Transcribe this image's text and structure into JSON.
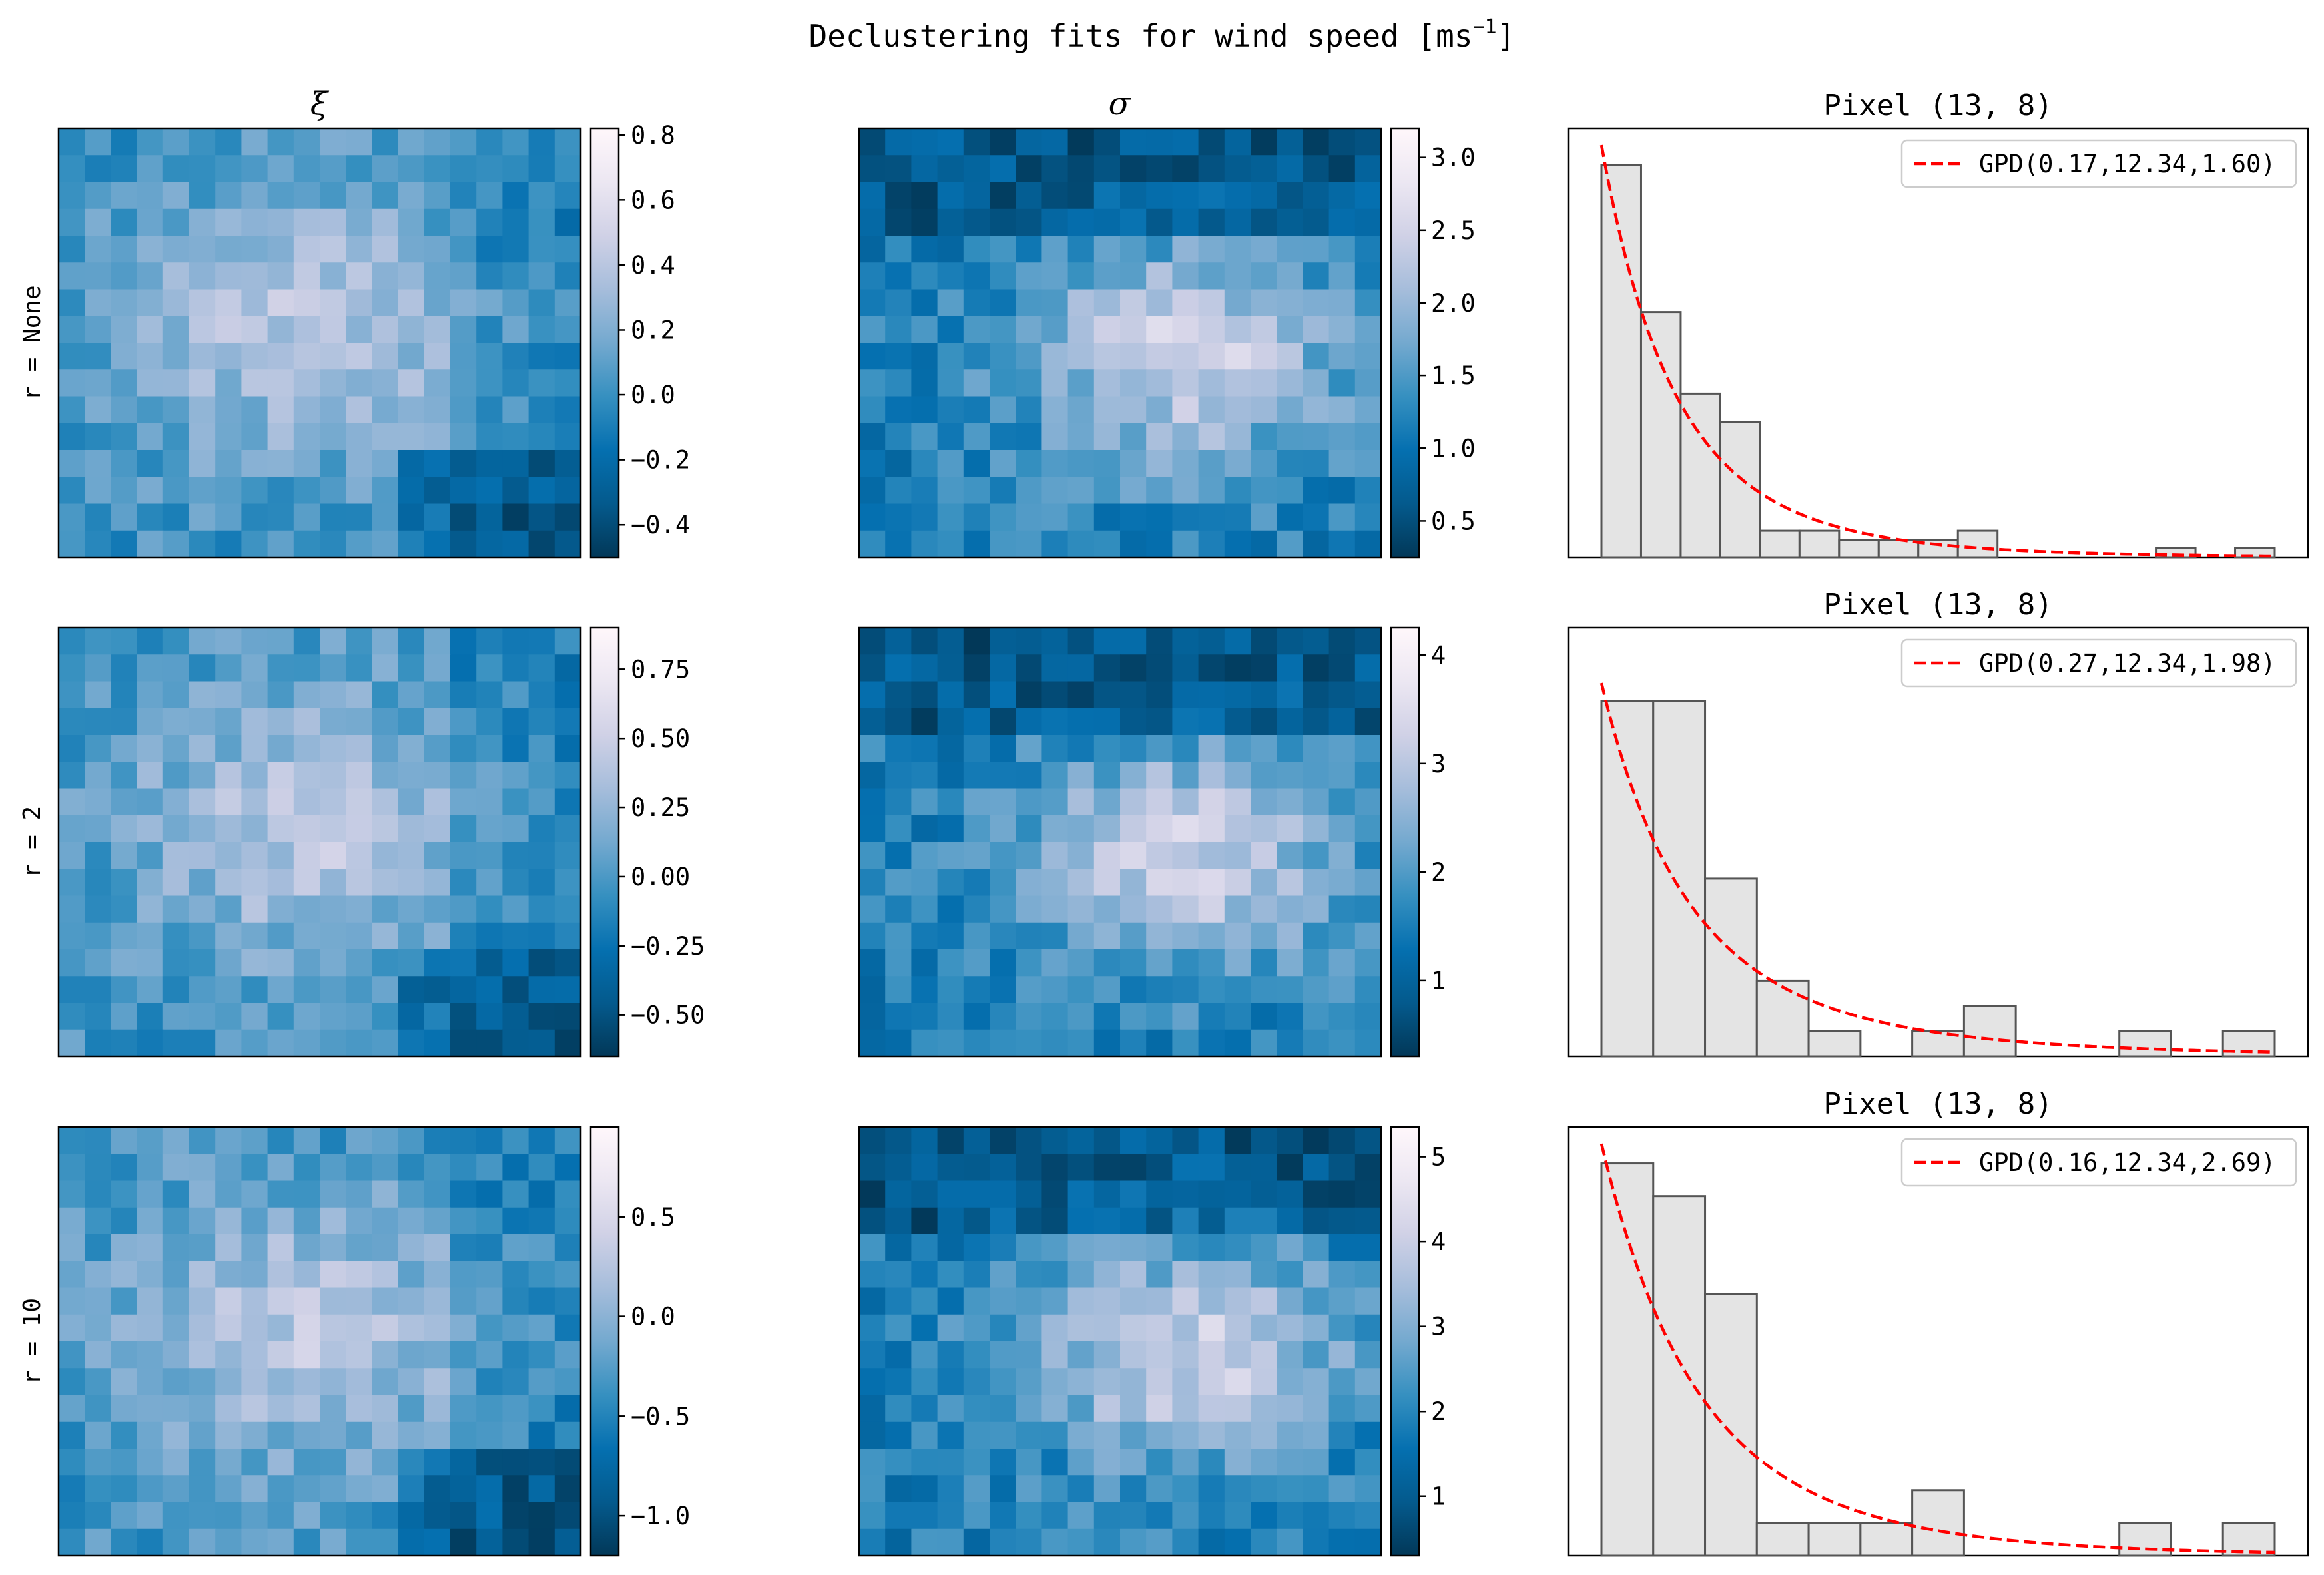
{
  "figure": {
    "title_main": "Declustering fits for wind speed [ms",
    "title_sup": "−1",
    "title_end": "]",
    "colors": {
      "cmap": [
        "#023858",
        "#045a8d",
        "#0570b0",
        "#3690c0",
        "#74a9cf",
        "#a6bddb",
        "#d0d1e6",
        "#ece7f2",
        "#fff7fb"
      ],
      "hist_fill": "#e4e4e4",
      "hist_edge": "#555555",
      "fit_line": "#ff0000"
    }
  },
  "columns": {
    "xi_title": "ξ",
    "sigma_title": "σ"
  },
  "rows": [
    {
      "label": "r = None",
      "xi_colorbar": {
        "ticks": [
          "0.8",
          "0.6",
          "0.4",
          "0.2",
          "0.0",
          "−0.2",
          "−0.4"
        ],
        "tick_values": [
          0.8,
          0.6,
          0.4,
          0.2,
          0.0,
          -0.2,
          -0.4
        ],
        "range": [
          -0.5,
          0.82
        ]
      },
      "sigma_colorbar": {
        "ticks": [
          "3.0",
          "2.5",
          "2.0",
          "1.5",
          "1.0",
          "0.5"
        ],
        "tick_values": [
          3.0,
          2.5,
          2.0,
          1.5,
          1.0,
          0.5
        ],
        "range": [
          0.25,
          3.2
        ]
      },
      "pixel_title": "Pixel (13, 8)",
      "legend": "GPD(0.17,12.34,1.60)",
      "fit": {
        "xi": 0.17,
        "mu": 12.34,
        "sigma": 1.6
      },
      "bins": [
        0,
        1,
        2,
        3,
        4,
        5,
        6,
        7,
        8,
        9,
        10,
        11,
        12,
        13,
        14,
        15,
        16,
        17
      ],
      "hist": [
        0.96,
        0.6,
        0.4,
        0.33,
        0.065,
        0.065,
        0.043,
        0.043,
        0.043,
        0.065,
        0,
        0,
        0,
        0,
        0.022,
        0,
        0.022
      ],
      "ylim": [
        0,
        1.0
      ]
    },
    {
      "label": "r = 2",
      "xi_colorbar": {
        "ticks": [
          "0.75",
          "0.50",
          "0.25",
          "0.00",
          "−0.25",
          "−0.50"
        ],
        "tick_values": [
          0.75,
          0.5,
          0.25,
          0.0,
          -0.25,
          -0.5
        ],
        "range": [
          -0.65,
          0.9
        ]
      },
      "sigma_colorbar": {
        "ticks": [
          "4",
          "3",
          "2",
          "1"
        ],
        "tick_values": [
          4,
          3,
          2,
          1
        ],
        "range": [
          0.3,
          4.25
        ]
      },
      "pixel_title": "Pixel (13, 8)",
      "legend": "GPD(0.27,12.34,1.98)",
      "fit": {
        "xi": 0.27,
        "mu": 12.34,
        "sigma": 1.98
      },
      "bins": [
        0,
        1,
        2,
        3,
        4,
        5,
        6,
        7,
        8,
        9,
        10,
        11,
        12,
        13
      ],
      "hist": [
        0.87,
        0.87,
        0.435,
        0.185,
        0.062,
        0,
        0.062,
        0.124,
        0,
        0,
        0.062,
        0,
        0.062
      ],
      "ylim": [
        0,
        1.0
      ]
    },
    {
      "label": "r = 10",
      "xi_colorbar": {
        "ticks": [
          "0.5",
          "0.0",
          "−0.5",
          "−1.0"
        ],
        "tick_values": [
          0.5,
          0.0,
          -0.5,
          -1.0
        ],
        "range": [
          -1.2,
          0.95
        ]
      },
      "sigma_colorbar": {
        "ticks": [
          "5",
          "4",
          "3",
          "2",
          "1"
        ],
        "tick_values": [
          5,
          4,
          3,
          2,
          1
        ],
        "range": [
          0.3,
          5.35
        ]
      },
      "pixel_title": "Pixel (13, 8)",
      "legend": "GPD(0.16,12.34,2.69)",
      "fit": {
        "xi": 0.16,
        "mu": 12.34,
        "sigma": 2.69
      },
      "bins": [
        0,
        1,
        2,
        3,
        4,
        5,
        6,
        7,
        8,
        9,
        10,
        11,
        12
      ],
      "hist": [
        0.96,
        0.88,
        0.64,
        0.08,
        0.08,
        0.08,
        0.16,
        0,
        0,
        0,
        0.08,
        0,
        0.08
      ],
      "ylim": [
        0,
        1.0
      ]
    }
  ],
  "chart_data": {
    "type": "heatmap",
    "title": "Declustering fits for wind speed [ms−1]",
    "grid_size": [
      20,
      16
    ],
    "panels": [
      {
        "row": "r = None",
        "column": "ξ",
        "colorbar_range": [
          -0.5,
          0.82
        ]
      },
      {
        "row": "r = None",
        "column": "σ",
        "colorbar_range": [
          0.25,
          3.2
        ]
      },
      {
        "row": "r = 2",
        "column": "ξ",
        "colorbar_range": [
          -0.65,
          0.9
        ]
      },
      {
        "row": "r = 2",
        "column": "σ",
        "colorbar_range": [
          0.3,
          4.25
        ]
      },
      {
        "row": "r = 10",
        "column": "ξ",
        "colorbar_range": [
          -1.2,
          0.95
        ]
      },
      {
        "row": "r = 10",
        "column": "σ",
        "colorbar_range": [
          0.3,
          5.35
        ]
      }
    ],
    "histograms": [
      {
        "type": "bar",
        "title": "Pixel (13, 8)",
        "legend": "GPD(0.17,12.34,1.60)",
        "values": [
          0.96,
          0.6,
          0.4,
          0.33,
          0.065,
          0.065,
          0.043,
          0.043,
          0.043,
          0.065,
          0,
          0,
          0,
          0,
          0.022,
          0,
          0.022
        ]
      },
      {
        "type": "bar",
        "title": "Pixel (13, 8)",
        "legend": "GPD(0.27,12.34,1.98)",
        "values": [
          0.87,
          0.87,
          0.435,
          0.185,
          0.062,
          0,
          0.062,
          0.124,
          0,
          0,
          0.062,
          0,
          0.062
        ]
      },
      {
        "type": "bar",
        "title": "Pixel (13, 8)",
        "legend": "GPD(0.16,12.34,2.69)",
        "values": [
          0.96,
          0.88,
          0.64,
          0.08,
          0.08,
          0.08,
          0.16,
          0,
          0,
          0,
          0.08,
          0,
          0.08
        ]
      }
    ]
  }
}
